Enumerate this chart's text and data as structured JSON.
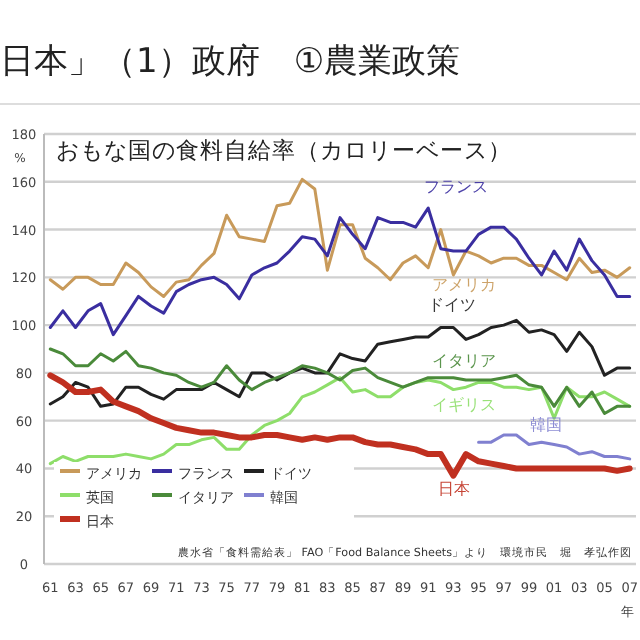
{
  "chart_data": {
    "type": "line",
    "title": "日本」（1）政府　①農業政策",
    "subtitle": "おもな国の食料自給率（カロリーベース）",
    "ylabel": "%",
    "xlabel": "年",
    "x": [
      1961,
      1962,
      1963,
      1964,
      1965,
      1966,
      1967,
      1968,
      1969,
      1970,
      1971,
      1972,
      1973,
      1974,
      1975,
      1976,
      1977,
      1978,
      1979,
      1980,
      1981,
      1982,
      1983,
      1984,
      1985,
      1986,
      1987,
      1988,
      1989,
      1990,
      1991,
      1992,
      1993,
      1994,
      1995,
      1996,
      1997,
      1998,
      1999,
      2000,
      2001,
      2002,
      2003,
      2004,
      2005,
      2006,
      2007
    ],
    "series": [
      {
        "name": "アメリカ",
        "color": "#c89a5a",
        "values": [
          119,
          115,
          120,
          120,
          117,
          117,
          126,
          122,
          116,
          112,
          118,
          119,
          125,
          130,
          146,
          137,
          136,
          135,
          150,
          151,
          161,
          157,
          123,
          142,
          142,
          128,
          124,
          119,
          126,
          129,
          124,
          140,
          121,
          131,
          129,
          126,
          128,
          128,
          125,
          125,
          122,
          119,
          128,
          122,
          123,
          120,
          124
        ]
      },
      {
        "name": "フランス",
        "color": "#3a2ea0",
        "values": [
          99,
          106,
          99,
          106,
          109,
          96,
          104,
          112,
          108,
          105,
          114,
          117,
          119,
          120,
          117,
          111,
          121,
          124,
          126,
          131,
          137,
          136,
          129,
          145,
          138,
          132,
          145,
          143,
          143,
          141,
          149,
          132,
          131,
          131,
          138,
          141,
          141,
          136,
          128,
          121,
          131,
          123,
          136,
          127,
          121,
          112,
          112
        ]
      },
      {
        "name": "ドイツ",
        "color": "#222222",
        "values": [
          67,
          70,
          76,
          74,
          66,
          67,
          74,
          74,
          71,
          69,
          73,
          73,
          73,
          76,
          73,
          70,
          80,
          80,
          77,
          80,
          82,
          80,
          80,
          88,
          86,
          85,
          92,
          93,
          94,
          95,
          95,
          99,
          99,
          94,
          96,
          99,
          100,
          102,
          97,
          98,
          96,
          89,
          97,
          91,
          79,
          82,
          82
        ]
      },
      {
        "name": "英国",
        "color": "#8ede6a",
        "values": [
          42,
          45,
          43,
          45,
          45,
          45,
          46,
          45,
          44,
          46,
          50,
          50,
          52,
          53,
          48,
          48,
          54,
          58,
          60,
          63,
          70,
          72,
          75,
          78,
          72,
          73,
          70,
          70,
          74,
          76,
          77,
          76,
          73,
          74,
          76,
          76,
          74,
          74,
          73,
          74,
          61,
          74,
          70,
          70,
          72,
          69,
          66
        ]
      },
      {
        "name": "イタリア",
        "color": "#4a8a3a",
        "values": [
          90,
          88,
          83,
          83,
          88,
          85,
          89,
          83,
          82,
          80,
          79,
          76,
          74,
          76,
          83,
          77,
          73,
          76,
          78,
          80,
          83,
          82,
          80,
          77,
          81,
          82,
          78,
          76,
          74,
          76,
          78,
          78,
          78,
          77,
          77,
          77,
          78,
          79,
          75,
          74,
          66,
          74,
          66,
          72,
          63,
          66,
          66
        ]
      },
      {
        "name": "韓国",
        "color": "#8080d0",
        "values": [
          null,
          null,
          null,
          null,
          null,
          null,
          null,
          null,
          null,
          null,
          null,
          null,
          null,
          null,
          null,
          null,
          null,
          null,
          null,
          null,
          null,
          null,
          null,
          null,
          null,
          null,
          null,
          null,
          null,
          null,
          null,
          null,
          null,
          null,
          51,
          51,
          54,
          54,
          50,
          51,
          50,
          49,
          46,
          47,
          45,
          45,
          44
        ]
      },
      {
        "name": "日本",
        "color": "#c03020",
        "values": [
          79,
          76,
          72,
          72,
          73,
          68,
          66,
          64,
          61,
          59,
          57,
          56,
          55,
          55,
          54,
          53,
          53,
          54,
          54,
          53,
          52,
          53,
          52,
          53,
          53,
          51,
          50,
          50,
          49,
          48,
          46,
          46,
          37,
          46,
          43,
          42,
          41,
          40,
          40,
          40,
          40,
          40,
          40,
          40,
          40,
          39,
          40
        ]
      }
    ],
    "ylim": [
      0,
      180
    ],
    "yticks": [
      0,
      20,
      40,
      60,
      80,
      100,
      120,
      140,
      160,
      180
    ],
    "xlim": [
      1960.5,
      2007.5
    ],
    "xticks": [
      {
        "value": 1961,
        "label": "61"
      },
      {
        "value": 1963,
        "label": "63"
      },
      {
        "value": 1965,
        "label": "65"
      },
      {
        "value": 1967,
        "label": "67"
      },
      {
        "value": 1969,
        "label": "69"
      },
      {
        "value": 1971,
        "label": "71"
      },
      {
        "value": 1973,
        "label": "73"
      },
      {
        "value": 1975,
        "label": "75"
      },
      {
        "value": 1977,
        "label": "77"
      },
      {
        "value": 1979,
        "label": "79"
      },
      {
        "value": 1981,
        "label": "81"
      },
      {
        "value": 1983,
        "label": "83"
      },
      {
        "value": 1985,
        "label": "85"
      },
      {
        "value": 1987,
        "label": "87"
      },
      {
        "value": 1989,
        "label": "89"
      },
      {
        "value": 1991,
        "label": "91"
      },
      {
        "value": 1993,
        "label": "93"
      },
      {
        "value": 1995,
        "label": "95"
      },
      {
        "value": 1997,
        "label": "97"
      },
      {
        "value": 1999,
        "label": "99"
      },
      {
        "value": 2001,
        "label": "01"
      },
      {
        "value": 2003,
        "label": "03"
      },
      {
        "value": 2005,
        "label": "05"
      },
      {
        "value": 2007,
        "label": "07"
      }
    ],
    "grid": "y",
    "legend": "bottom left",
    "marker": "none",
    "line_style": "solid",
    "annotations": [
      "フランス",
      "アメリカ",
      "ドイツ",
      "イタリア",
      "イギリス",
      "韓国",
      "日本",
      "農水省「食料需給表」 FAO「Food Balance Sheets」より　環境市民　堀　孝弘作図"
    ]
  }
}
